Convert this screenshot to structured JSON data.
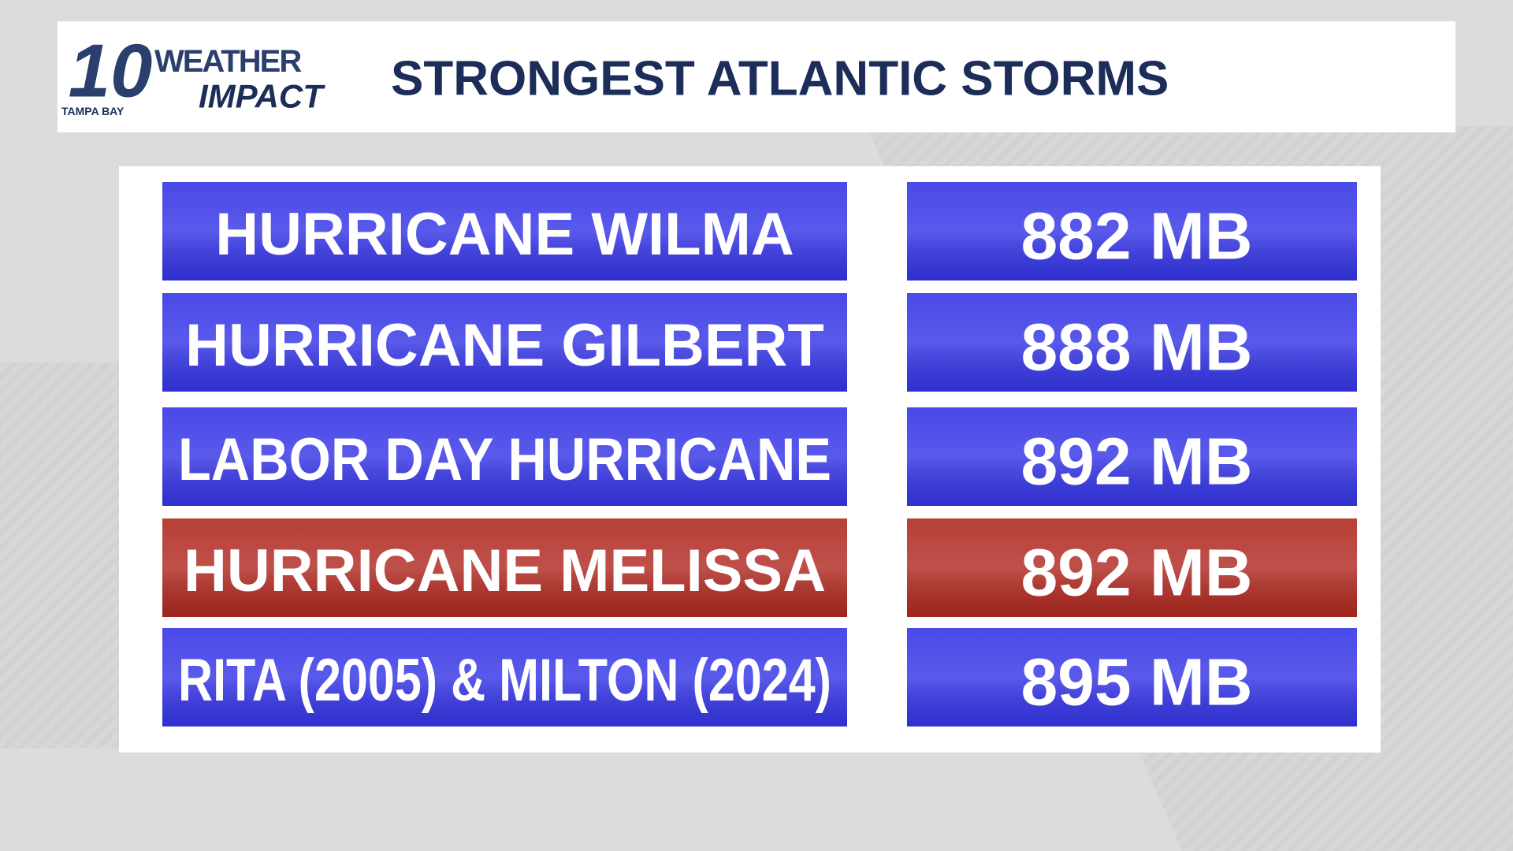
{
  "header": {
    "logo": {
      "number": "10",
      "line1": "WEATHER",
      "line2": "IMPACT",
      "station": "TAMPA BAY"
    },
    "title": "STRONGEST ATLANTIC STORMS"
  },
  "table": {
    "rows": [
      {
        "name": "HURRICANE WILMA",
        "pressure": "882 MB",
        "color": "#3535e6"
      },
      {
        "name": "HURRICANE GILBERT",
        "pressure": "888 MB",
        "color": "#3535e6"
      },
      {
        "name": "LABOR DAY HURRICANE",
        "pressure": "892 MB",
        "color": "#3535e6"
      },
      {
        "name": "HURRICANE MELISSA",
        "pressure": "892 MB",
        "color": "#b02a22"
      },
      {
        "name": "RITA (2005) & MILTON (2024)",
        "pressure": "895 MB",
        "color": "#3535e6"
      }
    ]
  }
}
